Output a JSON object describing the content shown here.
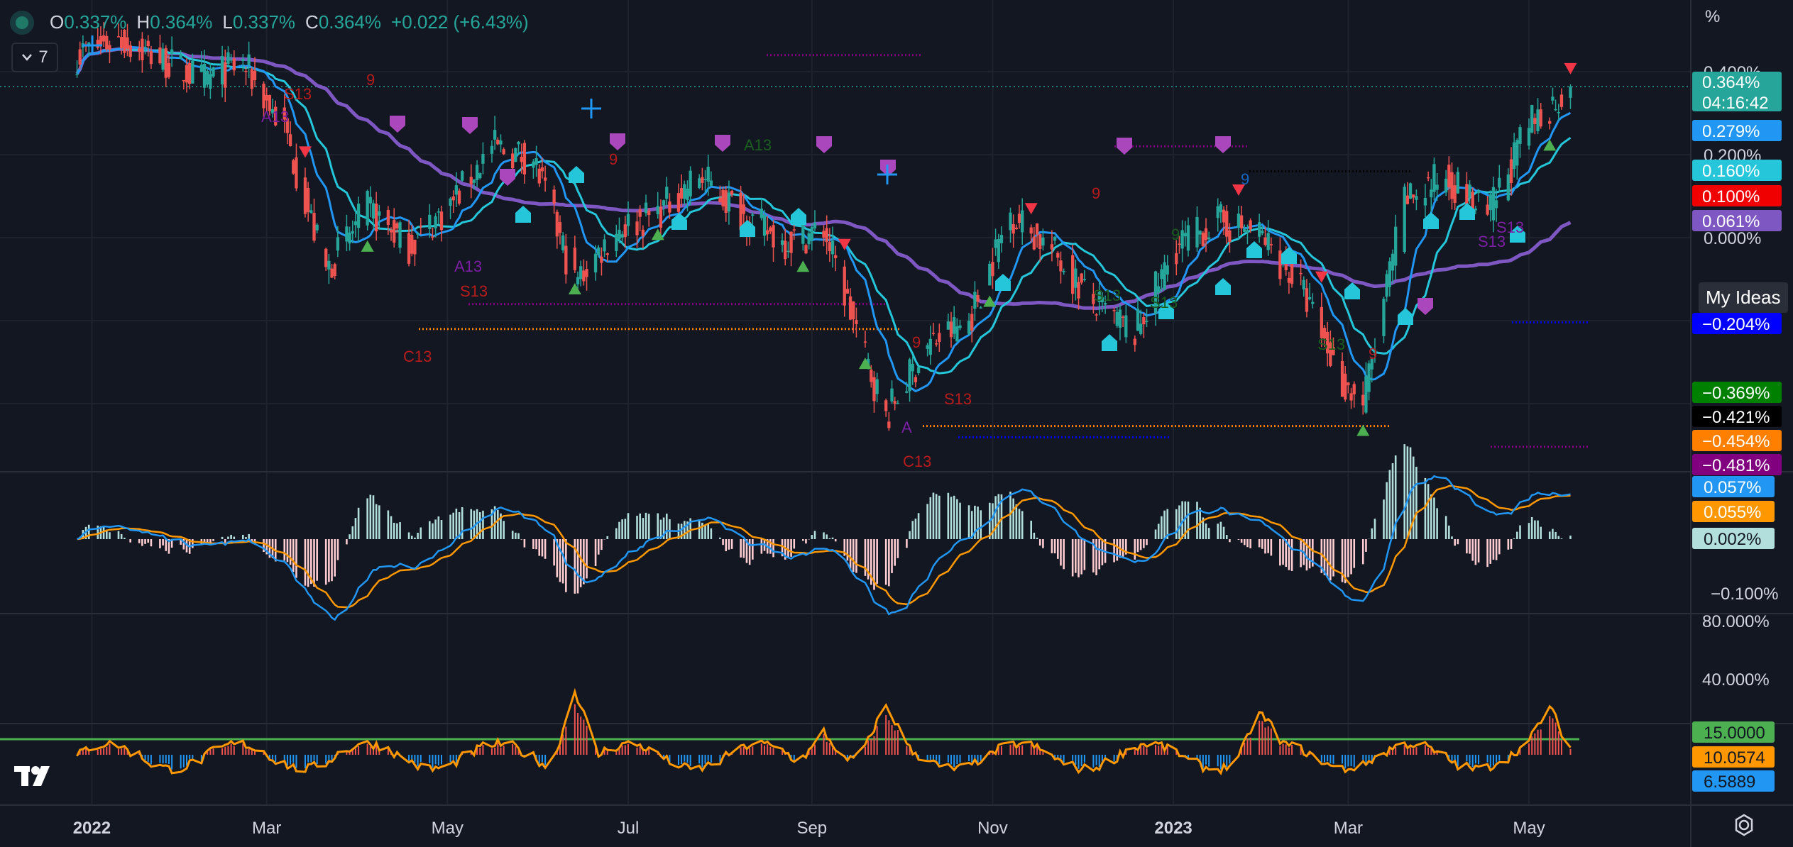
{
  "legend": {
    "open_label": "O",
    "open_value": "0.337%",
    "high_label": "H",
    "high_value": "0.364%",
    "low_label": "L",
    "low_value": "0.337%",
    "close_label": "C",
    "close_value": "0.364%",
    "change": "+0.022 (+6.43%)",
    "indicator_count": "7"
  },
  "axis_unit": "%",
  "my_ideas_label": "My Ideas",
  "colors": {
    "background": "#131722",
    "up": "#26a69a",
    "down": "#ef5350",
    "ma_fast": "#2196f3",
    "ma_mid": "#26c6da",
    "ma_slow": "#7e57c2",
    "macd": "#2196f3",
    "signal": "#ff9800",
    "rsi_line": "#ff9800",
    "rsi_level": "#4caf50"
  },
  "chart_data": [
    {
      "type": "candlestick",
      "pane": "price",
      "y_unit": "%",
      "ylim": [
        -0.62,
        0.46
      ],
      "y_ticks": [
        "0.400%",
        "0.200%",
        "0.000%"
      ],
      "x_ticks": [
        "2022",
        "Mar",
        "May",
        "Jul",
        "Sep",
        "Nov",
        "2023",
        "Mar",
        "May"
      ],
      "last": {
        "open": 0.337,
        "high": 0.364,
        "low": 0.337,
        "close": 0.364,
        "countdown": "04:16:42"
      },
      "close_path": [
        [
          "2021-12-27",
          0.44
        ],
        [
          "2022-01-10",
          0.48
        ],
        [
          "2022-01-24",
          0.43
        ],
        [
          "2022-02-07",
          0.38
        ],
        [
          "2022-02-21",
          0.42
        ],
        [
          "2022-03-07",
          0.26
        ],
        [
          "2022-03-21",
          -0.08
        ],
        [
          "2022-04-04",
          0.07
        ],
        [
          "2022-04-18",
          -0.02
        ],
        [
          "2022-05-02",
          0.08
        ],
        [
          "2022-05-16",
          0.22
        ],
        [
          "2022-05-30",
          0.19
        ],
        [
          "2022-06-13",
          -0.11
        ],
        [
          "2022-06-27",
          0.02
        ],
        [
          "2022-07-11",
          0.06
        ],
        [
          "2022-07-25",
          0.15
        ],
        [
          "2022-08-08",
          0.06
        ],
        [
          "2022-08-22",
          -0.01
        ],
        [
          "2022-09-05",
          0.02
        ],
        [
          "2022-09-19",
          -0.29
        ],
        [
          "2022-09-26",
          -0.43
        ],
        [
          "2022-10-10",
          -0.26
        ],
        [
          "2022-10-24",
          -0.2
        ],
        [
          "2022-11-07",
          0.06
        ],
        [
          "2022-11-21",
          -0.03
        ],
        [
          "2022-12-05",
          -0.16
        ],
        [
          "2022-12-19",
          -0.23
        ],
        [
          "2023-01-02",
          -0.02
        ],
        [
          "2023-01-16",
          0.04
        ],
        [
          "2023-01-30",
          0.01
        ],
        [
          "2023-02-13",
          -0.12
        ],
        [
          "2023-02-27",
          -0.35
        ],
        [
          "2023-03-06",
          -0.4
        ],
        [
          "2023-03-20",
          0.09
        ],
        [
          "2023-04-03",
          0.15
        ],
        [
          "2023-04-17",
          0.05
        ],
        [
          "2023-05-01",
          0.27
        ],
        [
          "2023-05-15",
          0.364
        ]
      ],
      "series": [
        {
          "name": "MA fast",
          "last": 0.279
        },
        {
          "name": "MA mid",
          "last": 0.16
        },
        {
          "name": "MA slow",
          "last": 0.061
        }
      ],
      "price_labels": [
        {
          "text": "0.364%",
          "sub": "04:16:42",
          "value": 0.364,
          "color": "#26a69a"
        },
        {
          "text": "0.279%",
          "value": 0.279,
          "color": "#2196f3"
        },
        {
          "text": "0.160%",
          "value": 0.16,
          "color": "#26c6da"
        },
        {
          "text": "0.100%",
          "value": 0.1,
          "color": "#f00000"
        },
        {
          "text": "0.061%",
          "value": 0.061,
          "color": "#7e57c2"
        },
        {
          "text": "−0.204%",
          "value": -0.204,
          "color": "#0000ff"
        },
        {
          "text": "−0.369%",
          "value": -0.369,
          "color": "#008000"
        },
        {
          "text": "−0.421%",
          "value": -0.421,
          "color": "#000000"
        },
        {
          "text": "−0.454%",
          "value": -0.454,
          "color": "#ff8000"
        },
        {
          "text": "−0.481%",
          "value": -0.481,
          "color": "#800080"
        }
      ],
      "annotations": [
        "S13",
        "A13",
        "A13",
        "S13",
        "C13",
        "9",
        "9",
        "A13",
        "9",
        "9",
        "S13",
        "A",
        "C13",
        "S13",
        "S13",
        "9",
        "S13",
        "9",
        "S13",
        "9",
        "S13"
      ]
    },
    {
      "type": "macd",
      "pane": "macd",
      "y_ticks": [
        "−0.100%"
      ],
      "labels": [
        {
          "text": "0.057%",
          "color": "#2196f3"
        },
        {
          "text": "0.055%",
          "color": "#ff9800"
        },
        {
          "text": "0.002%",
          "color": "#b2dfdb"
        }
      ]
    },
    {
      "type": "line",
      "pane": "percent",
      "y_ticks": [
        "80.000%",
        "40.000%"
      ]
    },
    {
      "type": "line",
      "pane": "oscillator",
      "labels": [
        {
          "text": "15.0000",
          "color": "#4caf50"
        },
        {
          "text": "10.0574",
          "color": "#ff9800"
        },
        {
          "text": "6.5889",
          "color": "#2196f3"
        }
      ],
      "spike_dates": [
        "2022-06-13",
        "2022-09-05",
        "2022-09-26",
        "2023-01-30",
        "2023-05-08"
      ]
    }
  ]
}
